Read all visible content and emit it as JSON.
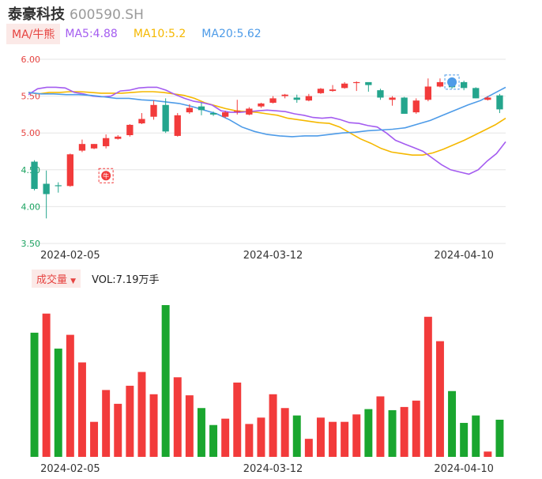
{
  "header": {
    "name": "泰豪科技",
    "code": "600590.SH"
  },
  "ma_legend": {
    "tag": "MA/牛熊",
    "ma5": "MA5:4.88",
    "ma10": "MA10:5.2",
    "ma20": "MA20:5.62"
  },
  "volume_legend": {
    "tag": "成交量",
    "value": "VOL:7.19万手"
  },
  "colors": {
    "up": "#f23b3b",
    "down": "#24a58d",
    "vol_down": "#1aa62f",
    "ma5": "#a45cf0",
    "ma10": "#f5b800",
    "ma20": "#4d9be8",
    "grid": "#e6e6e6",
    "axis_text": "#333333",
    "price_label": "#e64340",
    "price_label_low": "#1aa260"
  },
  "markers": {
    "bull_label": "牛"
  },
  "chart_data": [
    {
      "type": "candlestick",
      "title": "",
      "x_tick_labels": [
        "2024-02-05",
        "2024-03-12",
        "2024-04-10"
      ],
      "y_tick_labels": [
        "6.00",
        "5.50",
        "5.00",
        "4.50",
        "4.00",
        "3.50"
      ],
      "ylim": [
        3.5,
        6.0
      ],
      "grid": true,
      "ohlc": [
        {
          "o": 4.61,
          "h": 4.63,
          "l": 4.22,
          "c": 4.24
        },
        {
          "o": 4.31,
          "h": 4.49,
          "l": 3.84,
          "c": 4.17
        },
        {
          "o": 4.29,
          "h": 4.33,
          "l": 4.19,
          "c": 4.28
        },
        {
          "o": 4.28,
          "h": 4.72,
          "l": 4.27,
          "c": 4.71
        },
        {
          "o": 4.76,
          "h": 4.91,
          "l": 4.74,
          "c": 4.85
        },
        {
          "o": 4.79,
          "h": 4.85,
          "l": 4.78,
          "c": 4.85
        },
        {
          "o": 4.82,
          "h": 4.98,
          "l": 4.79,
          "c": 4.93
        },
        {
          "o": 4.92,
          "h": 4.97,
          "l": 4.91,
          "c": 4.95
        },
        {
          "o": 4.97,
          "h": 5.12,
          "l": 4.95,
          "c": 5.11
        },
        {
          "o": 5.13,
          "h": 5.27,
          "l": 5.12,
          "c": 5.19
        },
        {
          "o": 5.22,
          "h": 5.44,
          "l": 5.18,
          "c": 5.38
        },
        {
          "o": 5.38,
          "h": 5.47,
          "l": 5.0,
          "c": 5.02
        },
        {
          "o": 4.96,
          "h": 5.27,
          "l": 4.95,
          "c": 5.24
        },
        {
          "o": 5.28,
          "h": 5.39,
          "l": 5.26,
          "c": 5.34
        },
        {
          "o": 5.36,
          "h": 5.41,
          "l": 5.24,
          "c": 5.31
        },
        {
          "o": 5.27,
          "h": 5.29,
          "l": 5.23,
          "c": 5.25
        },
        {
          "o": 5.22,
          "h": 5.3,
          "l": 5.2,
          "c": 5.28
        },
        {
          "o": 5.29,
          "h": 5.45,
          "l": 5.25,
          "c": 5.3
        },
        {
          "o": 5.25,
          "h": 5.35,
          "l": 5.24,
          "c": 5.33
        },
        {
          "o": 5.36,
          "h": 5.41,
          "l": 5.34,
          "c": 5.4
        },
        {
          "o": 5.41,
          "h": 5.5,
          "l": 5.4,
          "c": 5.47
        },
        {
          "o": 5.5,
          "h": 5.53,
          "l": 5.47,
          "c": 5.52
        },
        {
          "o": 5.48,
          "h": 5.52,
          "l": 5.41,
          "c": 5.45
        },
        {
          "o": 5.44,
          "h": 5.53,
          "l": 5.43,
          "c": 5.5
        },
        {
          "o": 5.54,
          "h": 5.61,
          "l": 5.53,
          "c": 5.6
        },
        {
          "o": 5.57,
          "h": 5.65,
          "l": 5.56,
          "c": 5.59
        },
        {
          "o": 5.61,
          "h": 5.69,
          "l": 5.6,
          "c": 5.67
        },
        {
          "o": 5.69,
          "h": 5.7,
          "l": 5.57,
          "c": 5.69
        },
        {
          "o": 5.69,
          "h": 5.68,
          "l": 5.56,
          "c": 5.65
        },
        {
          "o": 5.58,
          "h": 5.6,
          "l": 5.45,
          "c": 5.48
        },
        {
          "o": 5.45,
          "h": 5.5,
          "l": 5.37,
          "c": 5.48
        },
        {
          "o": 5.48,
          "h": 5.49,
          "l": 5.26,
          "c": 5.26
        },
        {
          "o": 5.28,
          "h": 5.47,
          "l": 5.26,
          "c": 5.44
        },
        {
          "o": 5.45,
          "h": 5.74,
          "l": 5.43,
          "c": 5.63
        },
        {
          "o": 5.63,
          "h": 5.74,
          "l": 5.62,
          "c": 5.69
        },
        {
          "o": 5.69,
          "h": 5.73,
          "l": 5.6,
          "c": 5.62
        },
        {
          "o": 5.69,
          "h": 5.71,
          "l": 5.58,
          "c": 5.61
        },
        {
          "o": 5.61,
          "h": 5.62,
          "l": 5.47,
          "c": 5.47
        },
        {
          "o": 5.45,
          "h": 5.5,
          "l": 5.44,
          "c": 5.48
        },
        {
          "o": 5.51,
          "h": 5.53,
          "l": 5.27,
          "c": 5.32
        }
      ],
      "ma5": [
        5.52,
        5.6,
        5.62,
        5.62,
        5.61,
        5.55,
        5.53,
        5.5,
        5.49,
        5.5,
        5.57,
        5.58,
        5.61,
        5.62,
        5.62,
        5.58,
        5.52,
        5.47,
        5.43,
        5.41,
        5.38,
        5.3,
        5.28,
        5.28,
        5.29,
        5.3,
        5.31,
        5.3,
        5.29,
        5.26,
        5.24,
        5.21,
        5.2,
        5.21,
        5.18,
        5.14,
        5.13,
        5.1,
        5.08,
        5.0,
        4.9,
        4.85,
        4.8,
        4.75,
        4.66,
        4.57,
        4.5,
        4.47,
        4.44,
        4.5,
        4.62,
        4.72,
        4.88
      ],
      "ma10": [
        5.55,
        5.53,
        5.55,
        5.55,
        5.56,
        5.56,
        5.55,
        5.54,
        5.54,
        5.54,
        5.55,
        5.56,
        5.56,
        5.55,
        5.53,
        5.51,
        5.47,
        5.41,
        5.37,
        5.33,
        5.3,
        5.29,
        5.28,
        5.26,
        5.24,
        5.2,
        5.18,
        5.16,
        5.14,
        5.13,
        5.08,
        5.0,
        4.92,
        4.86,
        4.79,
        4.74,
        4.72,
        4.7,
        4.7,
        4.73,
        4.78,
        4.84,
        4.9,
        4.97,
        5.04,
        5.11,
        5.2
      ],
      "ma20": [
        5.55,
        5.53,
        5.53,
        5.52,
        5.52,
        5.51,
        5.49,
        5.47,
        5.47,
        5.45,
        5.44,
        5.42,
        5.4,
        5.36,
        5.31,
        5.26,
        5.18,
        5.08,
        5.02,
        4.98,
        4.96,
        4.95,
        4.96,
        4.96,
        4.98,
        5.0,
        5.01,
        5.03,
        5.04,
        5.05,
        5.07,
        5.12,
        5.17,
        5.24,
        5.31,
        5.38,
        5.44,
        5.53,
        5.62
      ]
    },
    {
      "type": "bar",
      "title": "",
      "x_tick_labels": [
        "2024-02-05",
        "2024-03-12",
        "2024-04-10"
      ],
      "values": [
        11.7,
        13.5,
        10.2,
        11.5,
        8.9,
        3.3,
        6.3,
        5.0,
        6.7,
        8.0,
        5.9,
        14.3,
        7.5,
        5.8,
        4.6,
        3.0,
        3.6,
        7.0,
        3.1,
        3.7,
        5.9,
        4.6,
        3.9,
        1.7,
        3.7,
        3.3,
        3.3,
        4.0,
        4.5,
        5.7,
        4.4,
        4.7,
        5.3,
        13.2,
        10.9,
        6.2,
        3.2,
        3.9,
        0.5,
        3.5
      ],
      "up": [
        false,
        true,
        false,
        true,
        true,
        true,
        true,
        true,
        true,
        true,
        true,
        false,
        true,
        true,
        false,
        false,
        true,
        true,
        true,
        true,
        true,
        true,
        false,
        true,
        true,
        true,
        true,
        true,
        false,
        true,
        false,
        true,
        true,
        true,
        true,
        false,
        false,
        false,
        true,
        false
      ]
    }
  ]
}
